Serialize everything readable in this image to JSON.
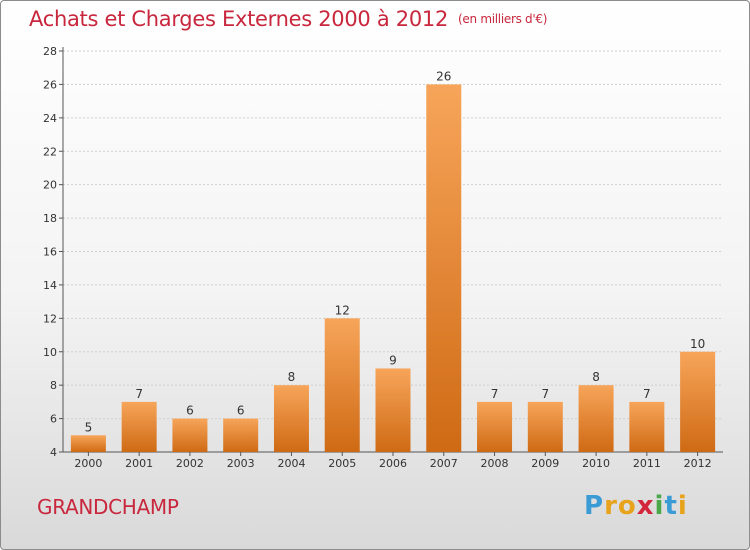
{
  "header": {
    "title": "Achats et Charges Externes 2000 à 2012",
    "unit": "(en milliers d'€)"
  },
  "footer": {
    "place": "GRANDCHAMP",
    "brand_letters": [
      "P",
      "r",
      "o",
      "x",
      "i",
      "t",
      "i"
    ],
    "brand_colors": [
      "#3a9bd5",
      "#e8a31c",
      "#e8a31c",
      "#d4263a",
      "#4aa84a",
      "#3a9bd5",
      "#e8a31c"
    ]
  },
  "colors": {
    "title": "#c8273d",
    "bar_light": "#f7a55a",
    "bar_dark": "#cf6a14"
  },
  "chart_data": {
    "type": "bar",
    "categories": [
      "2000",
      "2001",
      "2002",
      "2003",
      "2004",
      "2005",
      "2006",
      "2007",
      "2008",
      "2009",
      "2010",
      "2011",
      "2012"
    ],
    "values": [
      5,
      7,
      6,
      6,
      8,
      12,
      9,
      26,
      7,
      7,
      8,
      7,
      10
    ],
    "ylim": [
      4,
      28
    ],
    "yticks": [
      4,
      6,
      8,
      10,
      12,
      14,
      16,
      18,
      20,
      22,
      24,
      26,
      28
    ],
    "grid": true
  }
}
